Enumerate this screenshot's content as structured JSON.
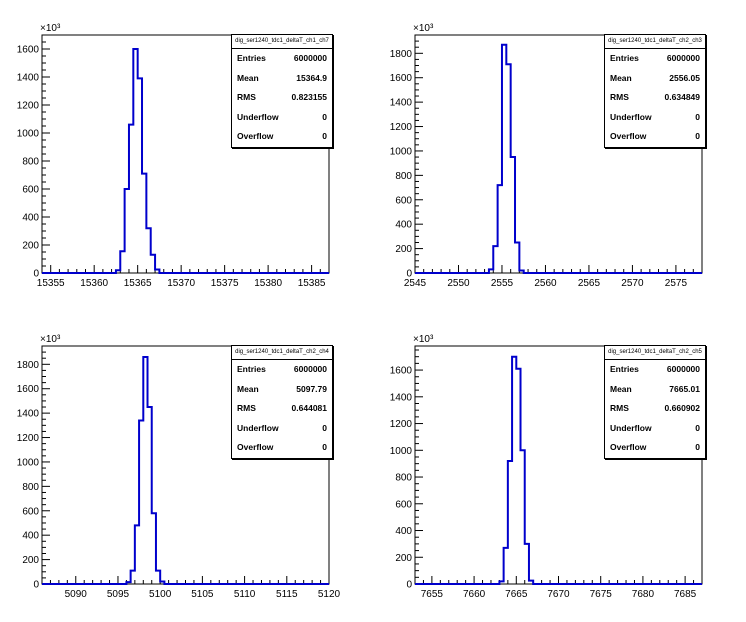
{
  "chart_data": [
    {
      "type": "histogram",
      "title": "dig_ser1240_tdc1_deltaT_ch1_ch7",
      "exponent_label": "×10³",
      "xlim": [
        15354,
        15387
      ],
      "ylim": [
        0,
        1700
      ],
      "xticks": [
        15355,
        15360,
        15365,
        15370,
        15375,
        15380,
        15385
      ],
      "yticks": [
        0,
        200,
        400,
        600,
        800,
        1000,
        1200,
        1400,
        1600
      ],
      "bin_width": 0.5,
      "bin_edges_start": 15362.5,
      "bin_values": [
        20,
        155,
        600,
        1060,
        1600,
        1390,
        710,
        320,
        130,
        25
      ],
      "stats": [
        {
          "label": "Entries",
          "value": "6000000"
        },
        {
          "label": "Mean",
          "value": "15364.9"
        },
        {
          "label": "RMS",
          "value": "0.823155"
        },
        {
          "label": "Underflow",
          "value": "0"
        },
        {
          "label": "Overflow",
          "value": "0"
        }
      ],
      "line_color": "#0000cc"
    },
    {
      "type": "histogram",
      "title": "dig_ser1240_tdc1_deltaT_ch2_ch3",
      "exponent_label": "×10³",
      "xlim": [
        2545,
        2578
      ],
      "ylim": [
        0,
        1950
      ],
      "xticks": [
        2545,
        2550,
        2555,
        2560,
        2565,
        2570,
        2575
      ],
      "yticks": [
        0,
        200,
        400,
        600,
        800,
        1000,
        1200,
        1400,
        1600,
        1800
      ],
      "bin_width": 0.5,
      "bin_edges_start": 2553.5,
      "bin_values": [
        30,
        220,
        720,
        1870,
        1710,
        950,
        250,
        20
      ],
      "stats": [
        {
          "label": "Entries",
          "value": "6000000"
        },
        {
          "label": "Mean",
          "value": "2556.05"
        },
        {
          "label": "RMS",
          "value": "0.634849"
        },
        {
          "label": "Underflow",
          "value": "0"
        },
        {
          "label": "Overflow",
          "value": "0"
        }
      ],
      "line_color": "#0000cc"
    },
    {
      "type": "histogram",
      "title": "dig_ser1240_tdc1_deltaT_ch2_ch4",
      "exponent_label": "×10³",
      "xlim": [
        5086,
        5120
      ],
      "ylim": [
        0,
        1950
      ],
      "xticks": [
        5090,
        5095,
        5100,
        5105,
        5110,
        5115,
        5120
      ],
      "yticks": [
        0,
        200,
        400,
        600,
        800,
        1000,
        1200,
        1400,
        1600,
        1800
      ],
      "bin_width": 0.5,
      "bin_edges_start": 5096.0,
      "bin_values": [
        15,
        110,
        480,
        1340,
        1860,
        1450,
        580,
        110,
        20
      ],
      "stats": [
        {
          "label": "Entries",
          "value": "6000000"
        },
        {
          "label": "Mean",
          "value": "5097.79"
        },
        {
          "label": "RMS",
          "value": "0.644081"
        },
        {
          "label": "Underflow",
          "value": "0"
        },
        {
          "label": "Overflow",
          "value": "0"
        }
      ],
      "line_color": "#0000cc"
    },
    {
      "type": "histogram",
      "title": "dig_ser1240_tdc1_deltaT_ch2_ch5",
      "exponent_label": "×10³",
      "xlim": [
        7653,
        7687
      ],
      "ylim": [
        0,
        1780
      ],
      "xticks": [
        7655,
        7660,
        7665,
        7670,
        7675,
        7680,
        7685
      ],
      "yticks": [
        0,
        200,
        400,
        600,
        800,
        1000,
        1200,
        1400,
        1600
      ],
      "bin_width": 0.5,
      "bin_edges_start": 7663.0,
      "bin_values": [
        20,
        270,
        920,
        1700,
        1610,
        1000,
        300,
        25
      ],
      "stats": [
        {
          "label": "Entries",
          "value": "6000000"
        },
        {
          "label": "Mean",
          "value": "7665.01"
        },
        {
          "label": "RMS",
          "value": "0.660902"
        },
        {
          "label": "Underflow",
          "value": "0"
        },
        {
          "label": "Overflow",
          "value": "0"
        }
      ],
      "line_color": "#0000cc"
    }
  ]
}
